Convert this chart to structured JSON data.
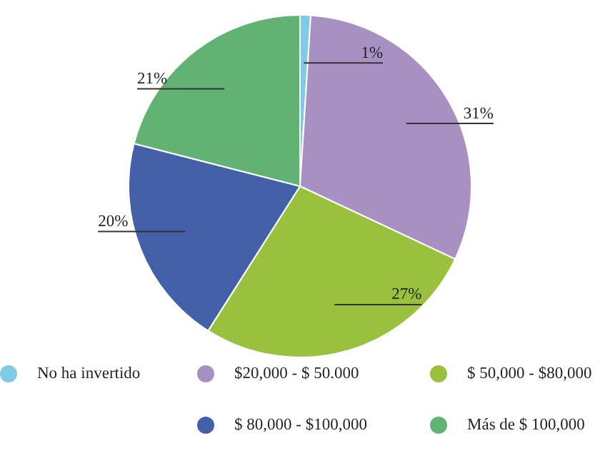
{
  "chart_data": {
    "type": "pie",
    "categories": [
      "No ha invertido",
      "$20,000 - $ 50.000",
      "$ 50,000 - $80,000",
      "$ 80,000 - $100,000",
      "Más de $ 100,000"
    ],
    "values": [
      1,
      31,
      27,
      20,
      21
    ],
    "colors": [
      "#7ecbe6",
      "#a890c2",
      "#99c13e",
      "#4360a8",
      "#62b373"
    ],
    "value_labels": [
      "1%",
      "31%",
      "27%",
      "20%",
      "21%"
    ],
    "legend": "bottom"
  }
}
